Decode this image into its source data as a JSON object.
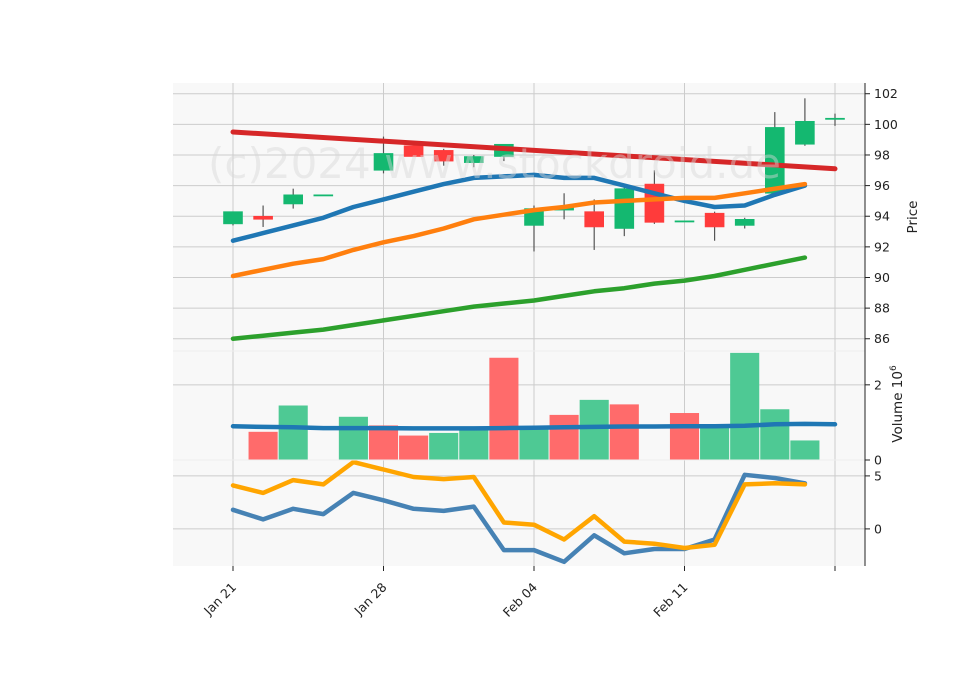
{
  "watermark": "(c)2024 www.stockdroid.de",
  "colors": {
    "up": "#14b870",
    "down": "#ff3b3b",
    "vol_up": "#4ec994",
    "vol_down": "#ff6b6b",
    "wick": "#555555",
    "grid": "#cccccc",
    "panel_bg": "#f8f8f8"
  },
  "chart_data": [
    {
      "type": "candlestick",
      "panel": "price",
      "ylabel": "Price",
      "ylim": [
        85.2,
        102.7
      ],
      "yticks": [
        86,
        88,
        90,
        92,
        94,
        96,
        98,
        100,
        102
      ],
      "xticks": [
        "Jan 21",
        "Jan 28",
        "Feb 04",
        "Feb 11",
        ""
      ],
      "xtick_index": [
        0,
        5,
        10,
        15,
        20
      ],
      "candles": [
        {
          "open": 93.5,
          "high": 94.3,
          "low": 93.4,
          "close": 94.3
        },
        {
          "open": 94.0,
          "high": 94.7,
          "low": 93.3,
          "close": 93.8
        },
        {
          "open": 94.8,
          "high": 95.8,
          "low": 94.5,
          "close": 95.4
        },
        {
          "open": 95.4,
          "high": 95.4,
          "low": 95.4,
          "close": 95.4
        },
        null,
        {
          "open": 97.0,
          "high": 99.2,
          "low": 96.8,
          "close": 98.1
        },
        {
          "open": 98.6,
          "high": 98.6,
          "low": 97.9,
          "close": 97.9
        },
        {
          "open": 98.3,
          "high": 98.4,
          "low": 97.3,
          "close": 97.6
        },
        {
          "open": 97.5,
          "high": 98.0,
          "low": 97.2,
          "close": 97.9
        },
        {
          "open": 97.9,
          "high": 98.7,
          "low": 97.6,
          "close": 98.7
        },
        {
          "open": 93.4,
          "high": 94.7,
          "low": 91.7,
          "close": 94.5
        },
        {
          "open": 94.4,
          "high": 95.5,
          "low": 93.8,
          "close": 94.6
        },
        {
          "open": 94.3,
          "high": 95.1,
          "low": 91.8,
          "close": 93.3
        },
        {
          "open": 93.2,
          "high": 96.0,
          "low": 92.7,
          "close": 95.8
        },
        {
          "open": 96.1,
          "high": 97.0,
          "low": 93.5,
          "close": 93.6
        },
        {
          "open": 93.7,
          "high": 93.7,
          "low": 93.7,
          "close": 93.7
        },
        {
          "open": 94.2,
          "high": 94.3,
          "low": 92.4,
          "close": 93.3
        },
        {
          "open": 93.4,
          "high": 93.9,
          "low": 93.2,
          "close": 93.8
        },
        {
          "open": 95.5,
          "high": 100.8,
          "low": 95.5,
          "close": 99.8
        },
        {
          "open": 98.7,
          "high": 101.7,
          "low": 98.6,
          "close": 100.2
        },
        {
          "open": 100.4,
          "high": 100.7,
          "low": 99.9,
          "close": 100.4
        }
      ],
      "lines": [
        {
          "color": "#d62728",
          "values": [
            99.5,
            null,
            null,
            null,
            null,
            null,
            null,
            null,
            null,
            null,
            null,
            null,
            null,
            null,
            null,
            null,
            null,
            null,
            null,
            null,
            97.1
          ]
        },
        {
          "color": "#1f77b4",
          "values": [
            92.4,
            92.9,
            93.4,
            93.9,
            94.6,
            95.1,
            95.6,
            96.1,
            96.5,
            96.6,
            96.7,
            96.5,
            96.5,
            96.0,
            95.5,
            95.0,
            94.6,
            94.7,
            95.4,
            96.0,
            null
          ]
        },
        {
          "color": "#ff7f0e",
          "values": [
            90.1,
            90.5,
            90.9,
            91.2,
            91.8,
            92.3,
            92.7,
            93.2,
            93.8,
            94.1,
            94.4,
            94.6,
            94.9,
            95.0,
            95.1,
            95.2,
            95.2,
            95.5,
            95.8,
            96.1,
            null
          ]
        },
        {
          "color": "#2ca02c",
          "values": [
            86.0,
            86.2,
            86.4,
            86.6,
            86.9,
            87.2,
            87.5,
            87.8,
            88.1,
            88.3,
            88.5,
            88.8,
            89.1,
            89.3,
            89.6,
            89.8,
            90.1,
            90.5,
            90.9,
            91.3,
            null
          ]
        }
      ]
    },
    {
      "type": "bar",
      "panel": "volume",
      "ylabel": "Volume  10",
      "ylabel_exp": "6",
      "ylim": [
        0,
        2.9
      ],
      "yticks": [
        0,
        2
      ],
      "bars": [
        {
          "value": 0,
          "dir": "up"
        },
        {
          "value": 0.75,
          "dir": "down"
        },
        {
          "value": 1.45,
          "dir": "up"
        },
        {
          "value": 0,
          "dir": "up"
        },
        {
          "value": 1.15,
          "dir": "up"
        },
        {
          "value": 0.92,
          "dir": "down"
        },
        {
          "value": 0.65,
          "dir": "down"
        },
        {
          "value": 0.72,
          "dir": "up"
        },
        {
          "value": 0.8,
          "dir": "up"
        },
        {
          "value": 2.72,
          "dir": "down"
        },
        {
          "value": 0.82,
          "dir": "up"
        },
        {
          "value": 1.2,
          "dir": "down"
        },
        {
          "value": 1.6,
          "dir": "up"
        },
        {
          "value": 1.48,
          "dir": "down"
        },
        {
          "value": 0,
          "dir": "up"
        },
        {
          "value": 1.25,
          "dir": "down"
        },
        {
          "value": 0.88,
          "dir": "up"
        },
        {
          "value": 2.85,
          "dir": "up"
        },
        {
          "value": 1.35,
          "dir": "up"
        },
        {
          "value": 0.52,
          "dir": "up"
        },
        {
          "value": 0,
          "dir": "up"
        }
      ],
      "line": {
        "color": "#1f77b4",
        "values": [
          0.9,
          0.88,
          0.87,
          0.85,
          0.85,
          0.85,
          0.84,
          0.84,
          0.84,
          0.85,
          0.86,
          0.87,
          0.88,
          0.89,
          0.89,
          0.9,
          0.9,
          0.91,
          0.95,
          0.96,
          0.95
        ]
      }
    },
    {
      "type": "line",
      "panel": "indicator",
      "ylim": [
        -3.5,
        6.5
      ],
      "yticks": [
        0,
        5
      ],
      "series": [
        {
          "color": "#4682b4",
          "values": [
            1.8,
            0.9,
            1.9,
            1.4,
            3.4,
            2.7,
            1.9,
            1.7,
            2.1,
            -2.0,
            -2.0,
            -3.1,
            -0.6,
            -2.3,
            -1.9,
            -1.9,
            -1.0,
            5.1,
            4.8,
            4.3,
            null
          ]
        },
        {
          "color": "#ffa500",
          "values": [
            4.1,
            3.4,
            4.6,
            4.2,
            6.3,
            5.6,
            4.9,
            4.7,
            4.9,
            0.6,
            0.4,
            -1.0,
            1.2,
            -1.2,
            -1.4,
            -1.8,
            -1.5,
            4.2,
            4.3,
            4.2,
            null
          ]
        }
      ]
    }
  ]
}
